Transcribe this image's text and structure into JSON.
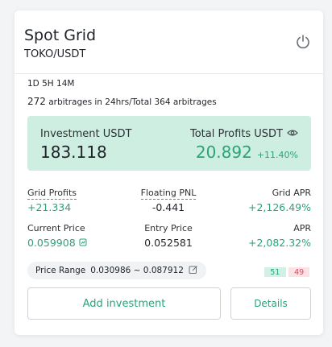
{
  "card": {
    "title": "Spot Grid",
    "pair": "TOKO/USDT",
    "duration": "1D 5H 14M",
    "arbitrage_count_24h": "272",
    "arbitrage_text": " arbitrages in 24hrs/Total 364 arbitrages"
  },
  "investment": {
    "label": "Investment USDT",
    "value": "183.118"
  },
  "total_profits": {
    "label": "Total Profits USDT",
    "value": "20.892",
    "percent": "+11.40%"
  },
  "stats": {
    "grid_profits_label": "Grid Profits",
    "grid_profits_value": "+21.334",
    "floating_pnl_label": "Floating PNL",
    "floating_pnl_value": "-0.441",
    "grid_apr_label": "Grid APR",
    "grid_apr_value": "+2,126.49%",
    "current_price_label": "Current Price",
    "current_price_value": "0.059908",
    "entry_price_label": "Entry Price",
    "entry_price_value": "0.052581",
    "apr_label": "APR",
    "apr_value": "+2,082.32%"
  },
  "price_range": {
    "label": "Price Range",
    "value": "0.030986 ~ 0.087912"
  },
  "buy_sell": {
    "buy": "51",
    "sell": "49"
  },
  "buttons": {
    "add_investment": "Add investment",
    "details": "Details"
  },
  "colors": {
    "accent_green": "#2aa37a",
    "hero_bg": "#cfeee2",
    "sell_red": "#e0475e"
  },
  "icons": {
    "power": "power-icon",
    "eye": "eye-icon",
    "chart": "chart-icon",
    "edit": "edit-icon"
  }
}
